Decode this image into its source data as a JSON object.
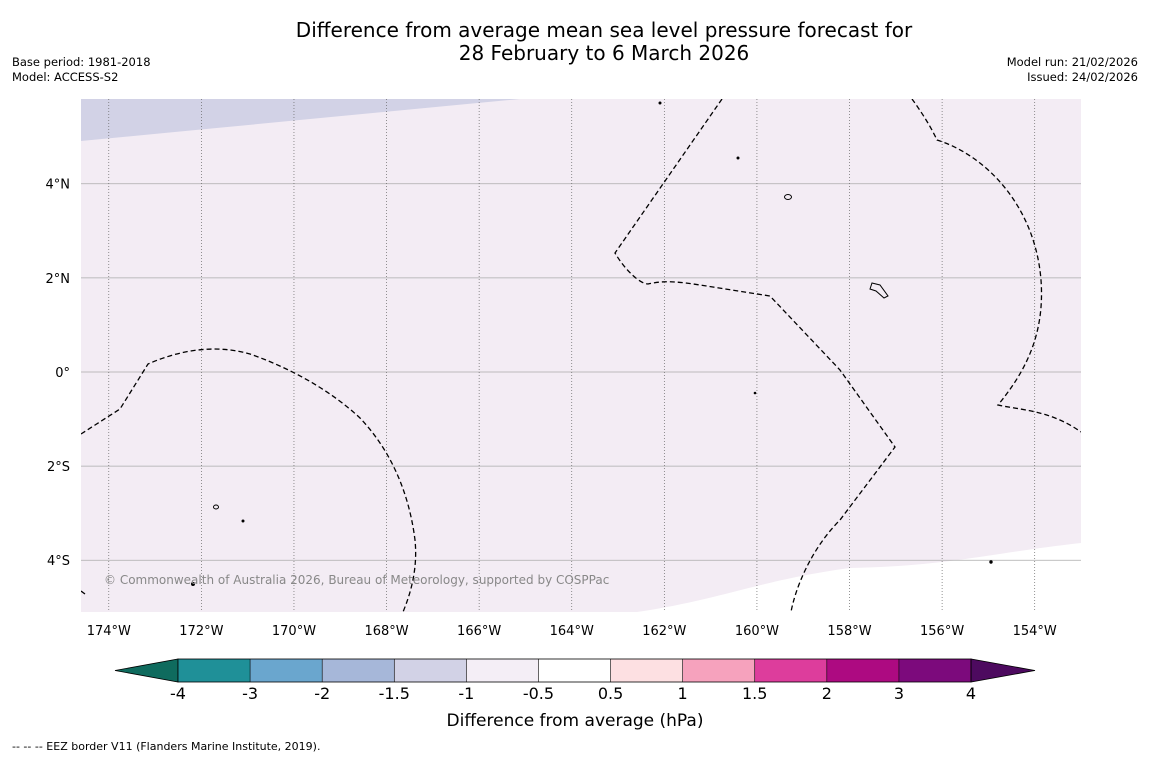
{
  "title": {
    "line1": "Difference from average mean sea level pressure forecast for",
    "line2": "28 February to 6 March 2026"
  },
  "meta_left": {
    "base_period": "Base period: 1981-2018",
    "model": "Model: ACCESS-S2"
  },
  "meta_right": {
    "model_run": "Model run: 21/02/2026",
    "issued": "Issued: 24/02/2026"
  },
  "map": {
    "longitude_labels": [
      "174°W",
      "172°W",
      "170°W",
      "168°W",
      "166°W",
      "164°W",
      "162°W",
      "160°W",
      "158°W",
      "156°W",
      "154°W"
    ],
    "latitude_labels": [
      "4°N",
      "2°N",
      "0°",
      "2°S",
      "4°S"
    ],
    "lon_range_deg_east": [
      -174.6,
      -153.0
    ],
    "lat_range_deg": [
      -5.1,
      5.8
    ],
    "copyright": "© Commonwealth of Australia 2026, Bureau of Meteorology, supported by COSPPac"
  },
  "colorbar": {
    "tick_labels": [
      "-4",
      "-3",
      "-2",
      "-1.5",
      "-1",
      "-0.5",
      "0.5",
      "1",
      "1.5",
      "2",
      "3",
      "4"
    ],
    "colors": [
      "#0f6b5e",
      "#1f9098",
      "#6aa6ce",
      "#a6b7d9",
      "#d2d2e6",
      "#f4eef6",
      "#ffffff",
      "#fde0e2",
      "#f6a2bd",
      "#dd3d9c",
      "#ad0a81",
      "#7c0a7c",
      "#4d0a5f"
    ],
    "label": "Difference from average (hPa)"
  },
  "colors": {
    "map_background": "#f3ecf4",
    "map_band_low": "#d2d2e6",
    "gridline": "#aaaaaa",
    "contour": "#000000"
  },
  "footer": "--  --  -- EEZ border V11 (Flanders Marine Institute, 2019)."
}
